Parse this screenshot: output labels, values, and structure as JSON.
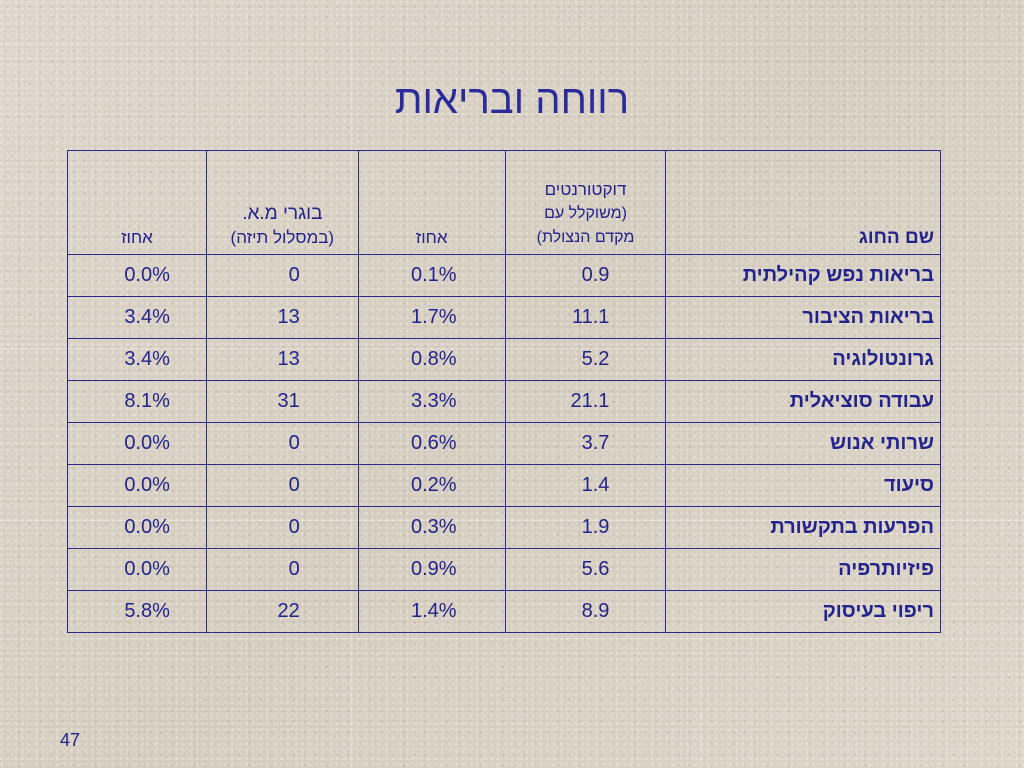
{
  "title": "רווחה ובריאות",
  "headers": {
    "name": "שם החוג",
    "doctoral_line1": "דוקטורנטים",
    "doctoral_line2": "(משוקלל עם",
    "doctoral_line3": "מקדם הנצולת)",
    "percent1": "אחוז",
    "graduates_line1": "בוגרי מ.א.",
    "graduates_line2": "(במסלול תיזה)",
    "percent2": "אחוז"
  },
  "rows": [
    {
      "name": "בריאות נפש קהילתית",
      "doctoral": "0.9",
      "percent1": "0.1%",
      "graduates": "0",
      "percent2": "0.0%"
    },
    {
      "name": "בריאות הציבור",
      "doctoral": "11.1",
      "percent1": "1.7%",
      "graduates": "13",
      "percent2": "3.4%"
    },
    {
      "name": "גרונטולוגיה",
      "doctoral": "5.2",
      "percent1": "0.8%",
      "graduates": "13",
      "percent2": "3.4%"
    },
    {
      "name": "עבודה סוציאלית",
      "doctoral": "21.1",
      "percent1": "3.3%",
      "graduates": "31",
      "percent2": "8.1%"
    },
    {
      "name": "שרותי אנוש",
      "doctoral": "3.7",
      "percent1": "0.6%",
      "graduates": "0",
      "percent2": "0.0%"
    },
    {
      "name": "סיעוד",
      "doctoral": "1.4",
      "percent1": "0.2%",
      "graduates": "0",
      "percent2": "0.0%"
    },
    {
      "name": "הפרעות בתקשורת",
      "doctoral": "1.9",
      "percent1": "0.3%",
      "graduates": "0",
      "percent2": "0.0%"
    },
    {
      "name": "פיזיותרפיה",
      "doctoral": "5.6",
      "percent1": "0.9%",
      "graduates": "0",
      "percent2": "0.0%"
    },
    {
      "name": "ריפוי בעיסוק",
      "doctoral": "8.9",
      "percent1": "1.4%",
      "graduates": "22",
      "percent2": "5.8%"
    }
  ],
  "page_number": "47"
}
